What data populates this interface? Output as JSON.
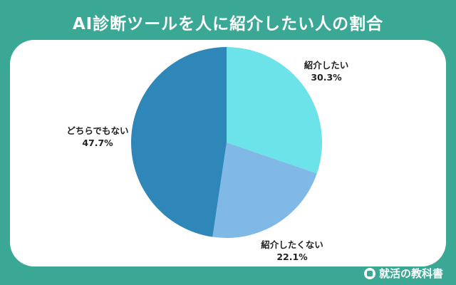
{
  "title": "AI診断ツールを人に紹介したい人の割合",
  "footer": {
    "brand": "就活の教科書",
    "icon": "brand-logo-icon"
  },
  "colors": {
    "background": "#3aa894",
    "panel": "#ffffff",
    "slices": [
      "#6ce3e8",
      "#80b9e6",
      "#2e86b9"
    ],
    "label_text": "#222222"
  },
  "chart_data": {
    "type": "pie",
    "title": "AI診断ツールを人に紹介したい人の割合",
    "start": "12 o'clock, clockwise",
    "slices": [
      {
        "label": "紹介したい",
        "value": 30.3,
        "value_label": "30.3%"
      },
      {
        "label": "紹介したくない",
        "value": 22.1,
        "value_label": "22.1%"
      },
      {
        "label": "どちらでもない",
        "value": 47.7,
        "value_label": "47.7%"
      }
    ]
  }
}
